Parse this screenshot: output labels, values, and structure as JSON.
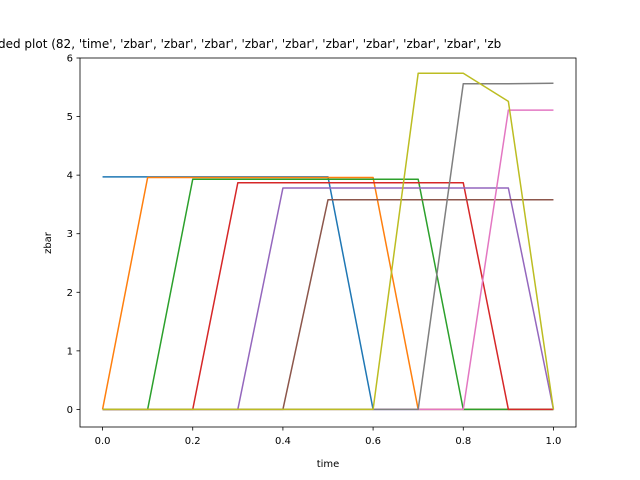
{
  "chart_data": {
    "type": "line",
    "title": "ded plot (82, 'time', 'zbar', 'zbar', 'zbar', 'zbar', 'zbar', 'zbar', 'zbar', 'zbar', 'zbar', 'zb",
    "xlabel": "time",
    "ylabel": "zbar",
    "xlim": [
      -0.05,
      1.05
    ],
    "ylim": [
      -0.3,
      6.0
    ],
    "xticks": [
      "0.0",
      "0.2",
      "0.4",
      "0.6",
      "0.8",
      "1.0"
    ],
    "yticks": [
      "0",
      "1",
      "2",
      "3",
      "4",
      "5",
      "6"
    ],
    "grid": false,
    "series": [
      {
        "color": "#1f77b4",
        "x": [
          0.0,
          0.1,
          0.2,
          0.3,
          0.4,
          0.5,
          0.6,
          0.7,
          0.8,
          0.9,
          1.0
        ],
        "values": [
          3.97,
          3.97,
          3.97,
          3.97,
          3.97,
          3.97,
          0,
          0,
          0,
          0,
          0
        ]
      },
      {
        "color": "#ff7f0e",
        "x": [
          0.0,
          0.1,
          0.2,
          0.3,
          0.4,
          0.5,
          0.6,
          0.7,
          0.8,
          0.9,
          1.0
        ],
        "values": [
          0,
          3.96,
          3.96,
          3.96,
          3.96,
          3.96,
          3.96,
          0,
          0,
          0,
          0
        ]
      },
      {
        "color": "#2ca02c",
        "x": [
          0.0,
          0.1,
          0.2,
          0.3,
          0.4,
          0.5,
          0.6,
          0.7,
          0.8,
          0.9,
          1.0
        ],
        "values": [
          0,
          0,
          3.93,
          3.93,
          3.93,
          3.93,
          3.93,
          3.93,
          0,
          0,
          0
        ]
      },
      {
        "color": "#d62728",
        "x": [
          0.0,
          0.1,
          0.2,
          0.3,
          0.4,
          0.5,
          0.6,
          0.7,
          0.8,
          0.9,
          1.0
        ],
        "values": [
          0,
          0,
          0,
          3.87,
          3.87,
          3.87,
          3.87,
          3.87,
          3.87,
          0,
          0
        ]
      },
      {
        "color": "#9467bd",
        "x": [
          0.0,
          0.1,
          0.2,
          0.3,
          0.4,
          0.5,
          0.6,
          0.7,
          0.8,
          0.9,
          1.0
        ],
        "values": [
          0,
          0,
          0,
          0,
          3.78,
          3.78,
          3.78,
          3.78,
          3.78,
          3.78,
          0
        ]
      },
      {
        "color": "#8c564b",
        "x": [
          0.0,
          0.1,
          0.2,
          0.3,
          0.4,
          0.5,
          0.6,
          0.7,
          0.8,
          0.9,
          1.0
        ],
        "values": [
          0,
          0,
          0,
          0,
          0,
          3.58,
          3.58,
          3.58,
          3.58,
          3.58,
          3.58
        ]
      },
      {
        "color": "#e377c2",
        "x": [
          0.0,
          0.1,
          0.2,
          0.3,
          0.4,
          0.5,
          0.6,
          0.7,
          0.8,
          0.9,
          1.0
        ],
        "values": [
          0,
          0,
          0,
          0,
          0,
          0,
          0,
          0,
          0,
          5.11,
          5.11
        ]
      },
      {
        "color": "#7f7f7f",
        "x": [
          0.0,
          0.1,
          0.2,
          0.3,
          0.4,
          0.5,
          0.6,
          0.7,
          0.8,
          0.9,
          1.0
        ],
        "values": [
          0,
          0,
          0,
          0,
          0,
          0,
          0,
          0,
          5.56,
          5.56,
          5.57
        ]
      },
      {
        "color": "#bcbd22",
        "x": [
          0.0,
          0.1,
          0.2,
          0.3,
          0.4,
          0.5,
          0.6,
          0.7,
          0.8,
          0.9,
          1.0
        ],
        "values": [
          0,
          0,
          0,
          0,
          0,
          0,
          0,
          5.74,
          5.74,
          5.26,
          0
        ]
      }
    ]
  }
}
